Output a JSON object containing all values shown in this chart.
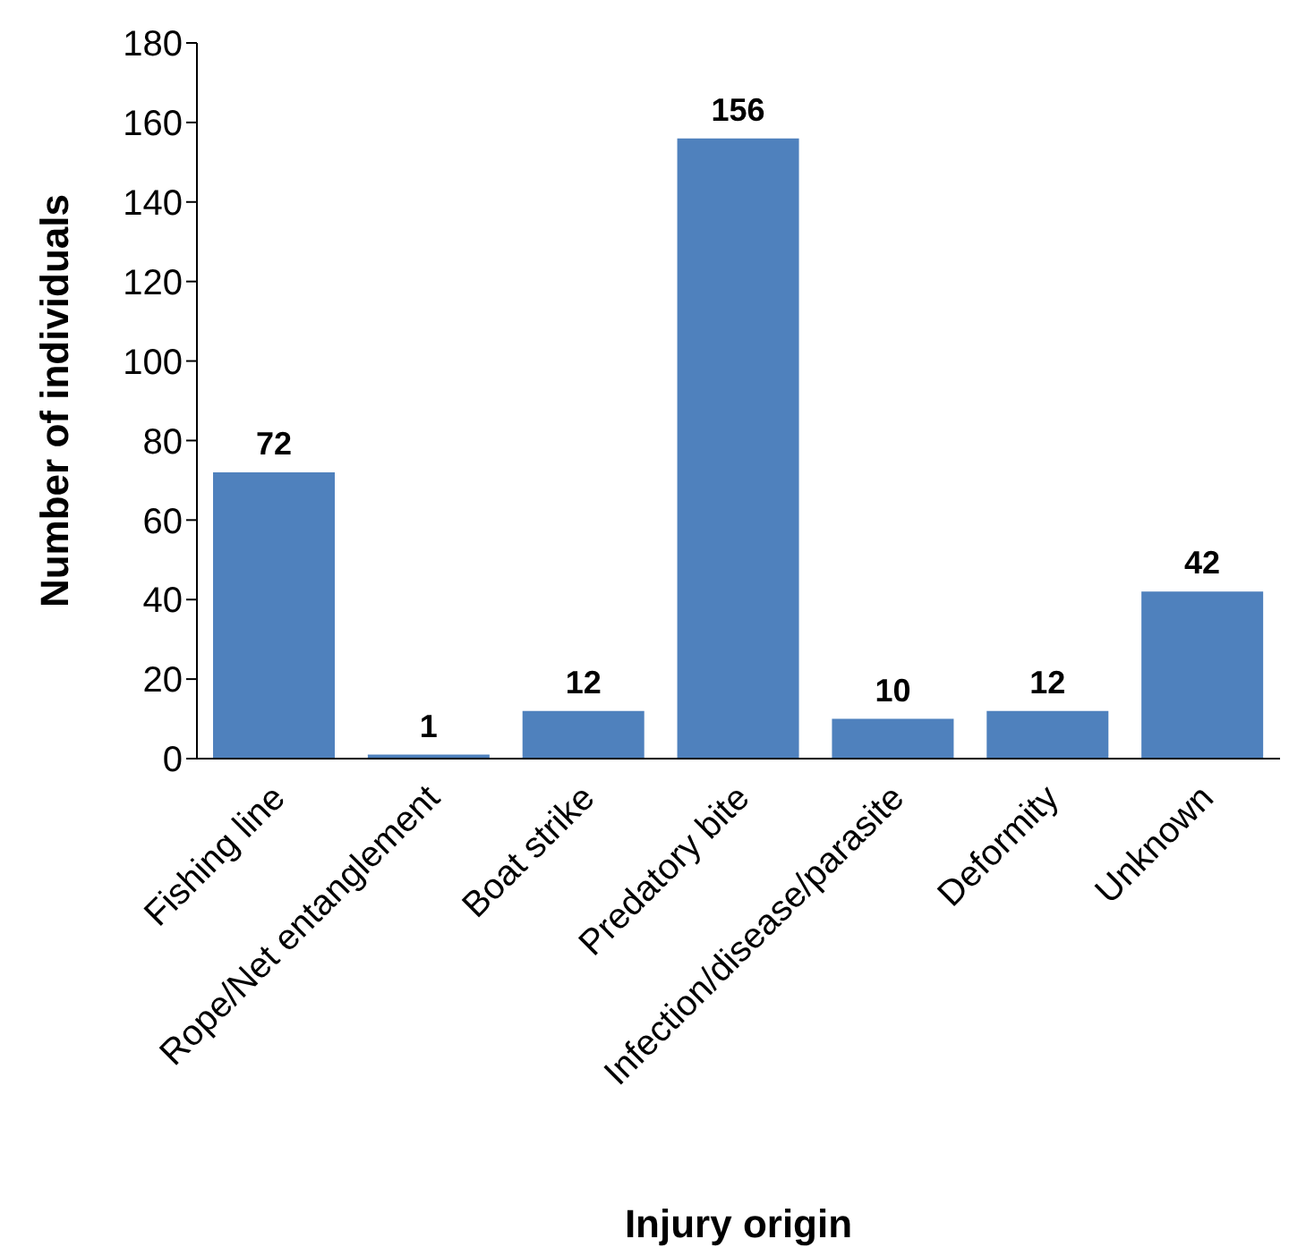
{
  "chart_data": {
    "type": "bar",
    "xlabel": "Injury origin",
    "ylabel": "Number of individuals",
    "categories": [
      "Fishing line",
      "Rope/Net entanglement",
      "Boat strike",
      "Predatory bite",
      "Infection/disease/parasite",
      "Deformity",
      "Unknown"
    ],
    "values": [
      72,
      1,
      12,
      156,
      10,
      12,
      42
    ],
    "color": "#4f81bd",
    "ylim": [
      0,
      180
    ],
    "yticks": [
      0,
      20,
      40,
      60,
      80,
      100,
      120,
      140,
      160,
      180
    ],
    "data_labels": true,
    "grid": false,
    "legend": false
  }
}
